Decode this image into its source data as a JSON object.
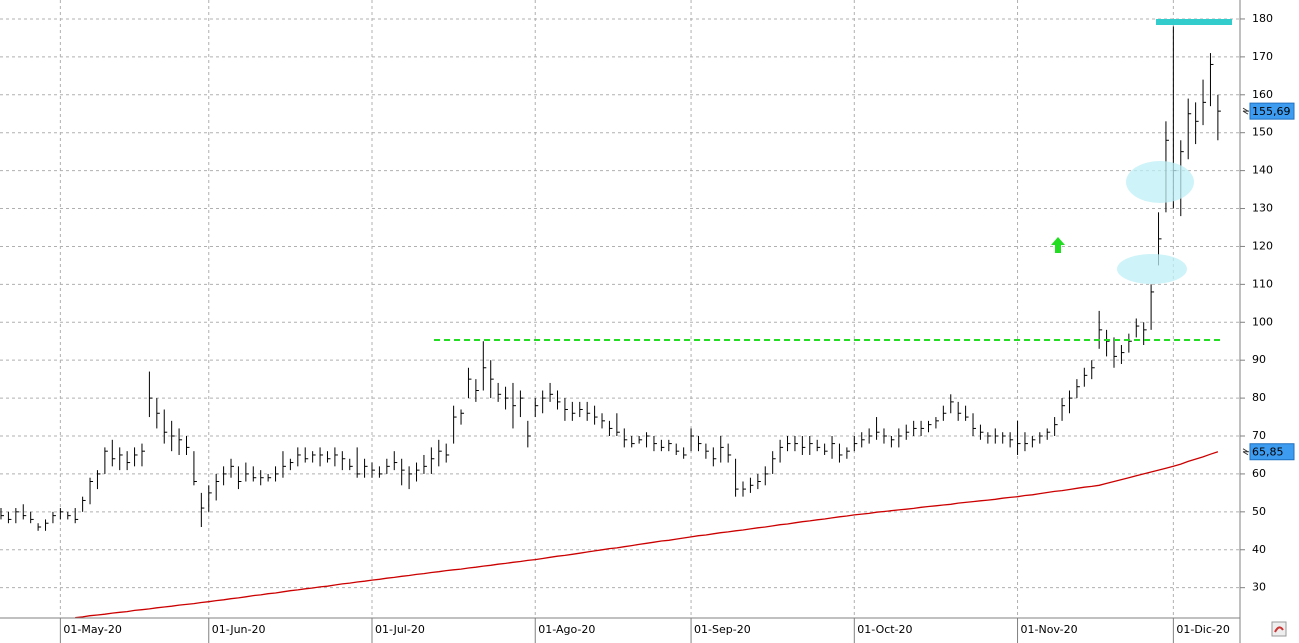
{
  "chart_data": {
    "type": "ohlc",
    "color": "#000000",
    "grid": true,
    "ylim": [
      22,
      185
    ],
    "yticks": [
      30,
      40,
      50,
      60,
      70,
      80,
      90,
      100,
      110,
      120,
      130,
      140,
      150,
      160,
      170,
      180
    ],
    "categories": [
      null,
      null,
      null,
      null,
      null,
      null,
      null,
      null,
      "01-May-20",
      null,
      null,
      null,
      null,
      null,
      null,
      null,
      null,
      null,
      null,
      null,
      null,
      null,
      null,
      null,
      null,
      null,
      null,
      null,
      "01-Jun-20",
      null,
      null,
      null,
      null,
      null,
      null,
      null,
      null,
      null,
      null,
      null,
      null,
      null,
      null,
      null,
      null,
      null,
      null,
      null,
      null,
      null,
      "01-Jul-20",
      null,
      null,
      null,
      null,
      null,
      null,
      null,
      null,
      null,
      null,
      null,
      null,
      null,
      null,
      null,
      null,
      null,
      null,
      null,
      null,
      null,
      "01-Ago-20",
      null,
      null,
      null,
      null,
      null,
      null,
      null,
      null,
      null,
      null,
      null,
      null,
      null,
      null,
      null,
      null,
      null,
      null,
      null,
      null,
      "01-Sep-20",
      null,
      null,
      null,
      null,
      null,
      null,
      null,
      null,
      null,
      null,
      null,
      null,
      null,
      null,
      null,
      null,
      null,
      null,
      null,
      null,
      null,
      "01-Oct-20",
      null,
      null,
      null,
      null,
      null,
      null,
      null,
      null,
      null,
      null,
      null,
      null,
      null,
      null,
      null,
      null,
      null,
      null,
      null,
      null,
      null,
      "01-Nov-20",
      null,
      null,
      null,
      null,
      null,
      null,
      null,
      null,
      null,
      null,
      null,
      null,
      null,
      null,
      null,
      null,
      null,
      null,
      null,
      null,
      "01-Dic-20",
      null,
      null,
      null,
      null,
      null,
      null
    ],
    "high": [
      51,
      50,
      51,
      52,
      50,
      47,
      48,
      50,
      51,
      50,
      51,
      54,
      59,
      61,
      67,
      69,
      67,
      66,
      67,
      68,
      87,
      80,
      77,
      74,
      72,
      70,
      66,
      55,
      57,
      60,
      62,
      64,
      62,
      63,
      62,
      61,
      60,
      62,
      66,
      64,
      67,
      67,
      66,
      67,
      66,
      67,
      66,
      64,
      67,
      64,
      63,
      62,
      64,
      66,
      64,
      62,
      63,
      65,
      67,
      69,
      68,
      78,
      77,
      88,
      85,
      95,
      90,
      84,
      83,
      84,
      82,
      74,
      80,
      82,
      84,
      82,
      80,
      79,
      79,
      79,
      78,
      76,
      74,
      76,
      72,
      70,
      70,
      71,
      70,
      69,
      69,
      68,
      67,
      72,
      70,
      68,
      67,
      70,
      68,
      64,
      58,
      59,
      60,
      62,
      66,
      69,
      70,
      70,
      70,
      70,
      69,
      68,
      70,
      68,
      67,
      70,
      71,
      72,
      75,
      72,
      70,
      72,
      73,
      74,
      74,
      74,
      75,
      78,
      81,
      79,
      78,
      76,
      73,
      71,
      72,
      71,
      71,
      74,
      71,
      70,
      71,
      72,
      75,
      80,
      82,
      85,
      88,
      90,
      103,
      98,
      96,
      94,
      97,
      101,
      100,
      110,
      129,
      153,
      178,
      148,
      159,
      158,
      164,
      171,
      160
    ],
    "low": [
      48,
      47,
      47,
      48,
      47,
      45,
      45,
      47,
      48,
      48,
      47,
      50,
      52,
      56,
      60,
      62,
      61,
      61,
      62,
      62,
      75,
      72,
      68,
      66,
      65,
      65,
      57,
      46,
      50,
      53,
      57,
      59,
      56,
      58,
      58,
      57,
      58,
      58,
      59,
      61,
      62,
      63,
      63,
      62,
      63,
      62,
      61,
      61,
      59,
      59,
      59,
      59,
      60,
      61,
      57,
      56,
      58,
      60,
      60,
      62,
      63,
      68,
      73,
      80,
      79,
      82,
      80,
      79,
      77,
      72,
      75,
      67,
      75,
      76,
      79,
      77,
      74,
      74,
      75,
      74,
      73,
      72,
      70,
      70,
      67,
      67,
      68,
      67,
      66,
      66,
      66,
      65,
      64,
      66,
      66,
      64,
      62,
      63,
      63,
      54,
      54,
      55,
      56,
      57,
      60,
      63,
      66,
      66,
      65,
      65,
      66,
      65,
      64,
      63,
      64,
      66,
      67,
      68,
      69,
      68,
      67,
      67,
      69,
      70,
      70,
      71,
      72,
      74,
      76,
      74,
      74,
      70,
      69,
      68,
      68,
      68,
      67,
      65,
      66,
      67,
      68,
      69,
      70,
      74,
      76,
      80,
      83,
      85,
      93,
      91,
      88,
      89,
      92,
      96,
      94,
      98,
      115,
      129,
      130,
      128,
      143,
      147,
      152,
      157,
      148
    ],
    "close": [
      49,
      48,
      50,
      49,
      48,
      46,
      47,
      49,
      50,
      49,
      48,
      53,
      58,
      60,
      66,
      64,
      65,
      63,
      65,
      66,
      80,
      76,
      71,
      70,
      69,
      67,
      58,
      51,
      55,
      58,
      60,
      62,
      58,
      60,
      59,
      59,
      59,
      60,
      62,
      63,
      65,
      64,
      65,
      65,
      64,
      65,
      64,
      62,
      60,
      62,
      61,
      60,
      62,
      63,
      61,
      60,
      61,
      62,
      64,
      66,
      65,
      75,
      76,
      85,
      82,
      88,
      85,
      81,
      80,
      78,
      80,
      70,
      78,
      80,
      81,
      79,
      77,
      76,
      77,
      76,
      75,
      74,
      72,
      71,
      69,
      68,
      69,
      70,
      68,
      67,
      68,
      66,
      65,
      70,
      68,
      66,
      64,
      67,
      65,
      56,
      56,
      57,
      58,
      60,
      64,
      67,
      68,
      68,
      67,
      68,
      67,
      66,
      68,
      65,
      66,
      68,
      69,
      70,
      71,
      70,
      69,
      70,
      71,
      72,
      72,
      73,
      74,
      76,
      79,
      76,
      75,
      72,
      71,
      70,
      70,
      70,
      69,
      68,
      68,
      69,
      70,
      71,
      73,
      78,
      80,
      83,
      86,
      88,
      98,
      95,
      91,
      92,
      95,
      99,
      98,
      108,
      122,
      148,
      140,
      145,
      155,
      153,
      158,
      168,
      155.69
    ],
    "overlays": [
      {
        "type": "line",
        "color": "#cc0000",
        "values": [
          null,
          null,
          null,
          null,
          null,
          null,
          null,
          null,
          null,
          null,
          22.1,
          22.3,
          22.6,
          22.8,
          23.0,
          23.3,
          23.5,
          23.7,
          24.0,
          24.2,
          24.4,
          24.7,
          24.9,
          25.1,
          25.4,
          25.6,
          25.8,
          26.1,
          26.3,
          26.6,
          26.8,
          27.1,
          27.3,
          27.6,
          27.9,
          28.1,
          28.4,
          28.6,
          28.9,
          29.2,
          29.4,
          29.7,
          29.9,
          30.2,
          30.4,
          30.7,
          31.0,
          31.2,
          31.5,
          31.7,
          32.0,
          32.2,
          32.5,
          32.7,
          33.0,
          33.2,
          33.5,
          33.7,
          34.0,
          34.2,
          34.5,
          34.7,
          34.9,
          35.2,
          35.4,
          35.7,
          35.9,
          36.2,
          36.4,
          36.7,
          36.9,
          37.2,
          37.4,
          37.7,
          38.0,
          38.3,
          38.5,
          38.8,
          39.1,
          39.4,
          39.7,
          40.0,
          40.3,
          40.5,
          40.8,
          41.1,
          41.4,
          41.7,
          42.0,
          42.3,
          42.5,
          42.8,
          43.1,
          43.4,
          43.7,
          43.9,
          44.2,
          44.5,
          44.7,
          45.0,
          45.2,
          45.5,
          45.8,
          46.0,
          46.3,
          46.6,
          46.8,
          47.1,
          47.4,
          47.6,
          47.9,
          48.1,
          48.4,
          48.7,
          48.9,
          49.2,
          49.4,
          49.6,
          49.9,
          50.1,
          50.3,
          50.5,
          50.7,
          50.9,
          51.2,
          51.4,
          51.6,
          51.8,
          52.0,
          52.3,
          52.5,
          52.7,
          52.9,
          53.1,
          53.3,
          53.6,
          53.8,
          54.0,
          54.3,
          54.5,
          54.8,
          55.1,
          55.4,
          55.6,
          55.9,
          56.2,
          56.5,
          56.7,
          57.0,
          57.5,
          58.0,
          58.5,
          59.0,
          59.5,
          60.0,
          60.5,
          61.0,
          61.5,
          62.0,
          62.6,
          63.3,
          63.9,
          64.5,
          65.2,
          65.85
        ]
      }
    ],
    "price_labels": [
      {
        "value": 155.69,
        "label": "155,69"
      },
      {
        "value": 65.85,
        "label": "65,85"
      }
    ]
  }
}
